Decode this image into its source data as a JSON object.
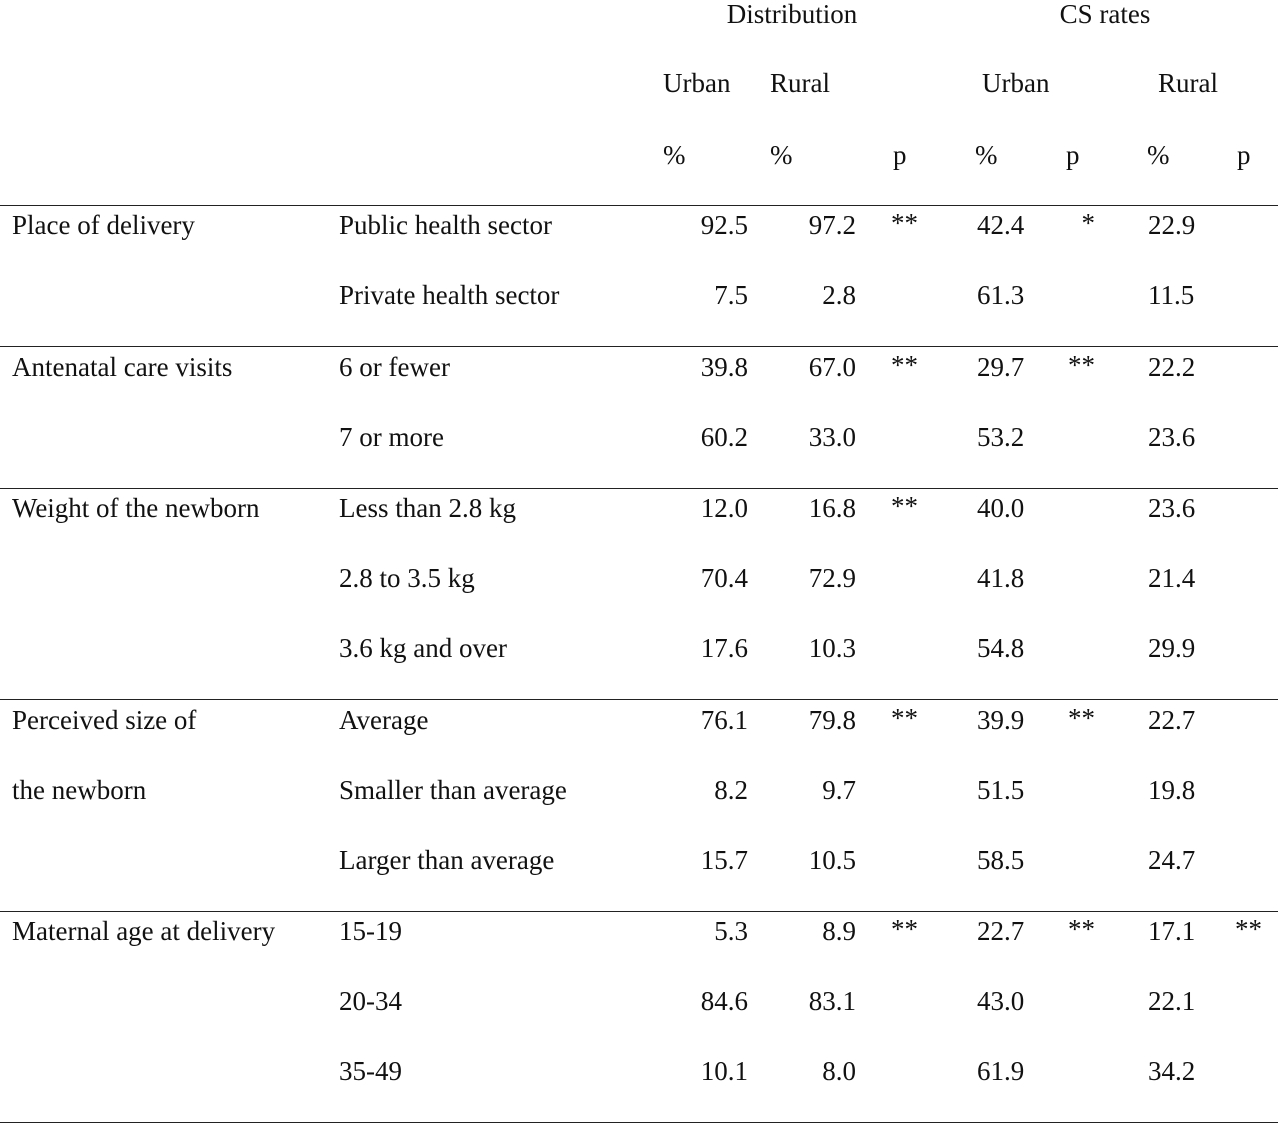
{
  "header": {
    "distribution": "Distribution",
    "cs_rates": "CS rates",
    "urban": "Urban",
    "rural": "Rural",
    "percent": "%",
    "p": "p"
  },
  "groups": [
    {
      "label_lines": [
        "Place of delivery"
      ],
      "rows": [
        {
          "category": "Public health sector",
          "dist_urban": "92.5",
          "dist_rural": "97.2",
          "dist_p": "**",
          "cs_urban": "42.4",
          "cs_urban_p": "*",
          "cs_rural": "22.9",
          "cs_rural_p": ""
        },
        {
          "category": "Private health sector",
          "dist_urban": "7.5",
          "dist_rural": "2.8",
          "dist_p": "",
          "cs_urban": "61.3",
          "cs_urban_p": "",
          "cs_rural": "11.5",
          "cs_rural_p": ""
        }
      ]
    },
    {
      "label_lines": [
        "Antenatal care visits"
      ],
      "rows": [
        {
          "category": "6 or fewer",
          "dist_urban": "39.8",
          "dist_rural": "67.0",
          "dist_p": "**",
          "cs_urban": "29.7",
          "cs_urban_p": "**",
          "cs_rural": "22.2",
          "cs_rural_p": ""
        },
        {
          "category": "7 or more",
          "dist_urban": "60.2",
          "dist_rural": "33.0",
          "dist_p": "",
          "cs_urban": "53.2",
          "cs_urban_p": "",
          "cs_rural": "23.6",
          "cs_rural_p": ""
        }
      ]
    },
    {
      "label_lines": [
        "Weight of the newborn"
      ],
      "rows": [
        {
          "category": "Less than 2.8 kg",
          "dist_urban": "12.0",
          "dist_rural": "16.8",
          "dist_p": "**",
          "cs_urban": "40.0",
          "cs_urban_p": "",
          "cs_rural": "23.6",
          "cs_rural_p": ""
        },
        {
          "category": "2.8 to 3.5 kg",
          "dist_urban": "70.4",
          "dist_rural": "72.9",
          "dist_p": "",
          "cs_urban": "41.8",
          "cs_urban_p": "",
          "cs_rural": "21.4",
          "cs_rural_p": ""
        },
        {
          "category": "3.6 kg and over",
          "dist_urban": "17.6",
          "dist_rural": "10.3",
          "dist_p": "",
          "cs_urban": "54.8",
          "cs_urban_p": "",
          "cs_rural": "29.9",
          "cs_rural_p": ""
        }
      ]
    },
    {
      "label_lines": [
        "Perceived size of",
        "the newborn"
      ],
      "rows": [
        {
          "category": "Average",
          "dist_urban": "76.1",
          "dist_rural": "79.8",
          "dist_p": "**",
          "cs_urban": "39.9",
          "cs_urban_p": "**",
          "cs_rural": "22.7",
          "cs_rural_p": ""
        },
        {
          "category": "Smaller than average",
          "dist_urban": "8.2",
          "dist_rural": "9.7",
          "dist_p": "",
          "cs_urban": "51.5",
          "cs_urban_p": "",
          "cs_rural": "19.8",
          "cs_rural_p": ""
        },
        {
          "category": "Larger than average",
          "dist_urban": "15.7",
          "dist_rural": "10.5",
          "dist_p": "",
          "cs_urban": "58.5",
          "cs_urban_p": "",
          "cs_rural": "24.7",
          "cs_rural_p": ""
        }
      ]
    },
    {
      "label_lines": [
        "Maternal age at delivery"
      ],
      "rows": [
        {
          "category": "15-19",
          "dist_urban": "5.3",
          "dist_rural": "8.9",
          "dist_p": "**",
          "cs_urban": "22.7",
          "cs_urban_p": "**",
          "cs_rural": "17.1",
          "cs_rural_p": "**"
        },
        {
          "category": "20-34",
          "dist_urban": "84.6",
          "dist_rural": "83.1",
          "dist_p": "",
          "cs_urban": "43.0",
          "cs_urban_p": "",
          "cs_rural": "22.1",
          "cs_rural_p": ""
        },
        {
          "category": "35-49",
          "dist_urban": "10.1",
          "dist_rural": "8.0",
          "dist_p": "",
          "cs_urban": "61.9",
          "cs_urban_p": "",
          "cs_rural": "34.2",
          "cs_rural_p": ""
        }
      ]
    }
  ]
}
